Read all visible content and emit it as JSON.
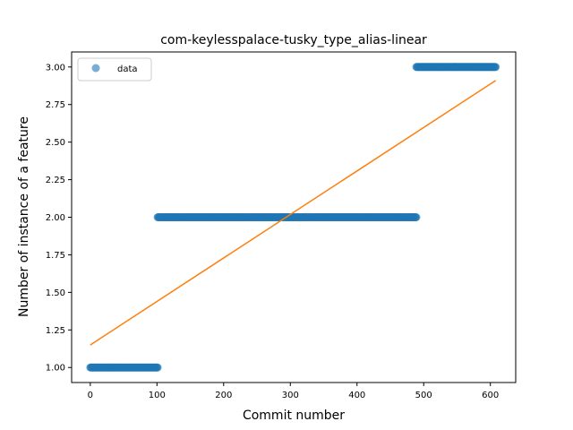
{
  "chart_data": {
    "type": "scatter",
    "title": "com-keylesspalace-tusky_type_alias-linear",
    "xlabel": "Commit number",
    "ylabel": "Number of instance of a feature",
    "xlim": [
      -28,
      638
    ],
    "ylim": [
      0.9,
      3.1
    ],
    "x_ticks": [
      0,
      100,
      200,
      300,
      400,
      500,
      600
    ],
    "x_tick_labels": [
      "0",
      "100",
      "200",
      "300",
      "400",
      "500",
      "600"
    ],
    "y_ticks": [
      1.0,
      1.25,
      1.5,
      1.75,
      2.0,
      2.25,
      2.5,
      2.75,
      3.0
    ],
    "y_tick_labels": [
      "1.00",
      "1.25",
      "1.50",
      "1.75",
      "2.00",
      "2.25",
      "2.50",
      "2.75",
      "3.00"
    ],
    "grid": false,
    "legend": {
      "position": "top-left",
      "entries": [
        "data"
      ]
    },
    "series": [
      {
        "name": "data",
        "kind": "scatter",
        "color": "#1f77b4",
        "segments": [
          {
            "x_start": 0,
            "x_end": 101,
            "y": 1.0
          },
          {
            "x_start": 101,
            "x_end": 489,
            "y": 2.0
          },
          {
            "x_start": 489,
            "x_end": 608,
            "y": 3.0
          }
        ]
      },
      {
        "kind": "line",
        "color": "#ff7f0e",
        "x": [
          0,
          608
        ],
        "y": [
          1.15,
          2.91
        ]
      }
    ]
  }
}
